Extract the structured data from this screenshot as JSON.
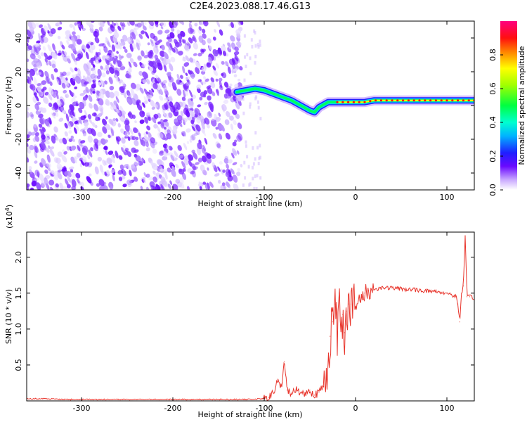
{
  "title": "C2E4.2023.088.17.46.G13",
  "chart_data": [
    {
      "type": "heatmap",
      "xlabel": "Height of straight line (km)",
      "ylabel": "Frequency (Hz)",
      "xlim": [
        -360,
        130
      ],
      "ylim": [
        -50,
        50
      ],
      "x_ticks": [
        -300,
        -200,
        -100,
        0,
        100
      ],
      "y_ticks": [
        -40,
        -20,
        0,
        20,
        40
      ],
      "colorbar": {
        "label": "Normalized spectral amplitude",
        "range": [
          0,
          1
        ],
        "ticks": [
          0.0,
          0.2,
          0.4,
          0.6,
          0.8
        ],
        "colormap": "rainbow"
      },
      "noise_region_x": [
        -360,
        -125
      ],
      "signal_ridge": {
        "x": [
          -130,
          -120,
          -110,
          -100,
          -90,
          -80,
          -70,
          -60,
          -50,
          -45,
          -40,
          -30,
          -20,
          -10,
          0,
          10,
          20,
          40,
          60,
          80,
          90,
          100,
          110,
          120,
          130
        ],
        "freq_hz": [
          8,
          9,
          10,
          9,
          7,
          5,
          3,
          0,
          -3,
          -4,
          -1,
          2,
          2,
          2,
          2,
          2,
          3,
          3,
          3,
          3,
          3,
          3,
          3,
          3,
          3
        ]
      }
    },
    {
      "type": "line",
      "xlabel": "Height of straight line (km)",
      "ylabel": "SNR (10 * v/v)",
      "y_multiplier": "(x10",
      "y_multiplier_exp": "4",
      "y_multiplier_close": ")",
      "xlim": [
        -360,
        130
      ],
      "ylim": [
        0,
        2.35
      ],
      "x_ticks": [
        -300,
        -200,
        -100,
        0,
        100
      ],
      "y_ticks": [
        0.5,
        1.0,
        1.5,
        2.0
      ],
      "series": [
        {
          "color": "#e8342b",
          "x": [
            -360,
            -340,
            -320,
            -300,
            -280,
            -260,
            -240,
            -220,
            -200,
            -180,
            -160,
            -140,
            -120,
            -100,
            -95,
            -90,
            -85,
            -82,
            -80,
            -78,
            -75,
            -70,
            -65,
            -60,
            -55,
            -50,
            -45,
            -40,
            -35,
            -30,
            -28,
            -25,
            -22,
            -20,
            -18,
            -16,
            -14,
            -12,
            -10,
            -8,
            -5,
            0,
            5,
            10,
            20,
            30,
            40,
            50,
            60,
            70,
            80,
            90,
            100,
            105,
            110,
            112,
            114,
            116,
            118,
            120,
            122,
            125,
            130
          ],
          "values": [
            0.03,
            0.03,
            0.02,
            0.02,
            0.02,
            0.02,
            0.02,
            0.02,
            0.02,
            0.02,
            0.02,
            0.02,
            0.02,
            0.03,
            0.05,
            0.1,
            0.3,
            0.2,
            0.25,
            0.55,
            0.15,
            0.12,
            0.15,
            0.12,
            0.1,
            0.15,
            0.08,
            0.12,
            0.2,
            0.55,
            0.9,
            1.1,
            1.35,
            0.9,
            1.5,
            1.0,
            1.2,
            0.95,
            1.25,
            1.35,
            1.35,
            1.3,
            1.4,
            1.5,
            1.55,
            1.58,
            1.57,
            1.56,
            1.55,
            1.54,
            1.53,
            1.52,
            1.5,
            1.48,
            1.45,
            1.35,
            1.1,
            1.5,
            1.6,
            2.3,
            1.45,
            1.45,
            1.43
          ]
        }
      ]
    }
  ]
}
